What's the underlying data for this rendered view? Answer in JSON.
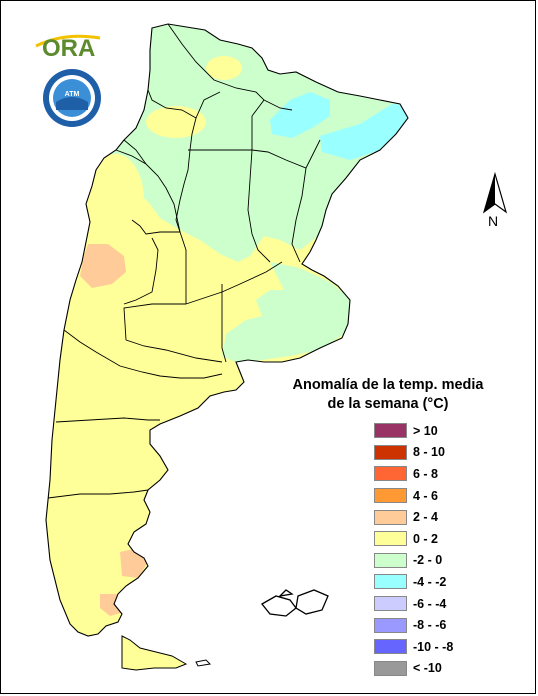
{
  "legend": {
    "title_line1": "Anomalía de la temp. media",
    "title_line2": "de la semana (°C)",
    "items": [
      {
        "label": "> 10",
        "color": "#993366"
      },
      {
        "label": "8 - 10",
        "color": "#cc3300"
      },
      {
        "label": "6 - 8",
        "color": "#ff6633"
      },
      {
        "label": "4 - 6",
        "color": "#ff9933"
      },
      {
        "label": "2 - 4",
        "color": "#ffcc99"
      },
      {
        "label": "0 - 2",
        "color": "#ffff99"
      },
      {
        "label": "-2 - 0",
        "color": "#ccffcc"
      },
      {
        "label": "-4 - -2",
        "color": "#99ffff"
      },
      {
        "label": "-6 - -4",
        "color": "#ccccff"
      },
      {
        "label": "-8 - -6",
        "color": "#9999ff"
      },
      {
        "label": "-10 - -8",
        "color": "#6666ff"
      },
      {
        "label": "< -10",
        "color": "#999999"
      }
    ]
  },
  "logos": {
    "ora": "ORA",
    "seal": "ATM"
  },
  "north_label": "N",
  "colors": {
    "warm_anomaly": "#ffff99",
    "cool_anomaly": "#ccffcc",
    "cold_anomaly": "#99ffff",
    "hot_anomaly": "#ffcc99",
    "boundary": "#000000"
  }
}
